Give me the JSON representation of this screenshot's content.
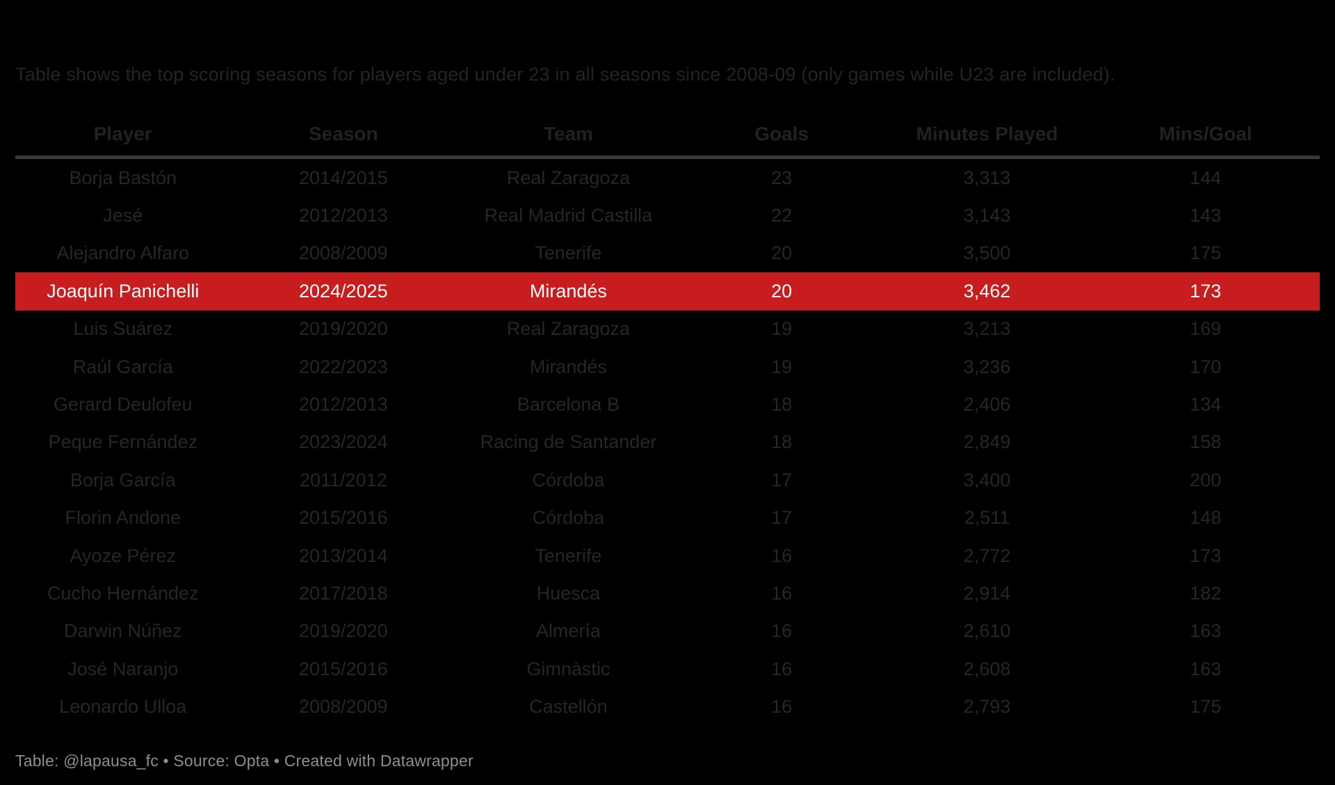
{
  "page": {
    "subtitle": "Table shows the top scoring seasons for players aged under 23 in all seasons since 2008-09 (only games while U23 are included).",
    "footer_credit": "Table: @lapausa_fc • Source: Opta • Created with Datawrapper"
  },
  "colors": {
    "background": "#000000",
    "subtitle_text": "#242424",
    "header_text": "#212121",
    "body_text": "#262626",
    "divider": "#3a3a3a",
    "highlight_row_bg": "#c71d1e",
    "highlight_row_text": "#fbfbfb",
    "footer_text": "#8f8f8f"
  },
  "chart_data": {
    "type": "table",
    "title": "",
    "subtitle": "Table shows the top scoring seasons for players aged under 23 in all seasons since 2008-09 (only games while U23 are included).",
    "columns": [
      "Player",
      "Season",
      "Team",
      "Goals",
      "Minutes Played",
      "Mins/Goal"
    ],
    "column_keys": [
      "player",
      "season",
      "team",
      "goals",
      "minutes-played",
      "mins-per-goal"
    ],
    "highlighted_row_index": 3,
    "rows": [
      [
        "Borja Bastón",
        "2014/2015",
        "Real Zaragoza",
        "23",
        "3,313",
        "144"
      ],
      [
        "Jesé",
        "2012/2013",
        "Real Madrid Castilla",
        "22",
        "3,143",
        "143"
      ],
      [
        "Alejandro Alfaro",
        "2008/2009",
        "Tenerife",
        "20",
        "3,500",
        "175"
      ],
      [
        "Joaquín Panichelli",
        "2024/2025",
        "Mirandés",
        "20",
        "3,462",
        "173"
      ],
      [
        "Luis Suárez",
        "2019/2020",
        "Real Zaragoza",
        "19",
        "3,213",
        "169"
      ],
      [
        "Raúl García",
        "2022/2023",
        "Mirandés",
        "19",
        "3,236",
        "170"
      ],
      [
        "Gerard Deulofeu",
        "2012/2013",
        "Barcelona B",
        "18",
        "2,406",
        "134"
      ],
      [
        "Peque Fernández",
        "2023/2024",
        "Racing de Santander",
        "18",
        "2,849",
        "158"
      ],
      [
        "Borja García",
        "2011/2012",
        "Córdoba",
        "17",
        "3,400",
        "200"
      ],
      [
        "Florin Andone",
        "2015/2016",
        "Córdoba",
        "17",
        "2,511",
        "148"
      ],
      [
        "Ayoze Pérez",
        "2013/2014",
        "Tenerife",
        "16",
        "2,772",
        "173"
      ],
      [
        "Cucho Hernández",
        "2017/2018",
        "Huesca",
        "16",
        "2,914",
        "182"
      ],
      [
        "Darwin Núñez",
        "2019/2020",
        "Almería",
        "16",
        "2,610",
        "163"
      ],
      [
        "José Naranjo",
        "2015/2016",
        "Gimnàstic",
        "16",
        "2,608",
        "163"
      ],
      [
        "Leonardo Ulloa",
        "2008/2009",
        "Castellón",
        "16",
        "2,793",
        "175"
      ]
    ],
    "footer": "Table: @lapausa_fc • Source: Opta • Created with Datawrapper"
  }
}
